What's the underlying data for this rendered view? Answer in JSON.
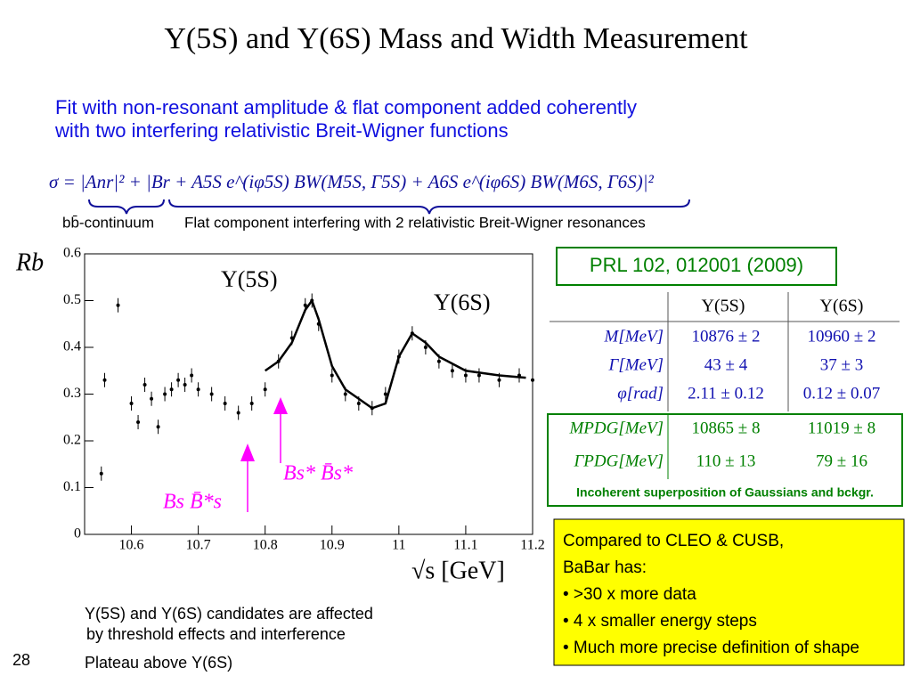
{
  "title": "Υ(5S) and Υ(6S) Mass and Width Measurement",
  "intro": [
    "Fit with non-resonant amplitude & flat component added coherently",
    "with two interfering relativistic Breit-Wigner functions"
  ],
  "formula": "σ = |Anr|² + |Br + A5S e^(iφ5S) BW(M5S, Γ5S) + A6S e^(iφ6S) BW(M6S, Γ6S)|²",
  "formula_labels": [
    "bb̄-continuum",
    "Flat component interfering with 2 relativistic Breit-Wigner resonances"
  ],
  "plot": {
    "ylabel": "Rb",
    "xlabel": "√s [GeV]",
    "annotations": [
      "Υ(5S)",
      "Υ(6S)",
      "Bs* B̄s*",
      "Bs B̄*s"
    ],
    "xlim": [
      10.53,
      11.2
    ],
    "ylim": [
      0,
      0.6
    ],
    "xticks": [
      10.6,
      10.7,
      10.8,
      10.9,
      11,
      11.1,
      11.2
    ],
    "yticks": [
      0,
      0.1,
      0.2,
      0.3,
      0.4,
      0.5,
      0.6
    ],
    "points": {
      "x": [
        10.555,
        10.56,
        10.58,
        10.6,
        10.61,
        10.62,
        10.63,
        10.64,
        10.65,
        10.66,
        10.67,
        10.68,
        10.69,
        10.7,
        10.72,
        10.74,
        10.76,
        10.78,
        10.8,
        10.82,
        10.84,
        10.86,
        10.87,
        10.88,
        10.9,
        10.92,
        10.94,
        10.96,
        10.98,
        11.0,
        11.02,
        11.04,
        11.06,
        11.08,
        11.1,
        11.12,
        11.15,
        11.18,
        11.2
      ],
      "y": [
        0.13,
        0.33,
        0.49,
        0.28,
        0.24,
        0.32,
        0.29,
        0.23,
        0.3,
        0.31,
        0.33,
        0.32,
        0.34,
        0.31,
        0.3,
        0.28,
        0.26,
        0.28,
        0.31,
        0.37,
        0.42,
        0.49,
        0.5,
        0.45,
        0.34,
        0.3,
        0.28,
        0.27,
        0.3,
        0.38,
        0.43,
        0.4,
        0.37,
        0.35,
        0.34,
        0.34,
        0.33,
        0.34,
        0.33
      ]
    },
    "fit": {
      "x": [
        10.8,
        10.82,
        10.84,
        10.86,
        10.87,
        10.88,
        10.9,
        10.92,
        10.94,
        10.96,
        10.98,
        11.0,
        11.02,
        11.04,
        11.06,
        11.1,
        11.15,
        11.19
      ],
      "y": [
        0.35,
        0.37,
        0.41,
        0.48,
        0.5,
        0.46,
        0.36,
        0.31,
        0.29,
        0.27,
        0.28,
        0.38,
        0.43,
        0.41,
        0.38,
        0.35,
        0.34,
        0.335
      ]
    }
  },
  "reference": "PRL 102, 012001 (2009)",
  "table": {
    "header": [
      "Υ(5S)",
      "Υ(6S)"
    ],
    "rows": [
      [
        "M[MeV]",
        "10876 ± 2",
        "10960 ± 2"
      ],
      [
        "Γ[MeV]",
        "43 ± 4",
        "37 ± 3"
      ],
      [
        "φ[rad]",
        "2.11 ± 0.12",
        "0.12 ± 0.07"
      ]
    ],
    "pdg_rows": [
      [
        "MPDG[MeV]",
        "10865 ± 8",
        "11019 ± 8"
      ],
      [
        "ΓPDG[MeV]",
        "110 ± 13",
        "79 ± 16"
      ]
    ],
    "pdg_note": "Incoherent superposition of Gaussians and bckgr."
  },
  "comparison": [
    "Compared to CLEO & CUSB,",
    "BaBar has:",
    "• >30 x more data",
    "• 4 x smaller energy steps",
    "• Much more precise definition of shape"
  ],
  "notes": [
    "Υ(5S) and Υ(6S) candidates are affected",
    "by threshold effects and interference",
    "Plateau above Υ(6S)"
  ],
  "page_number": "28"
}
